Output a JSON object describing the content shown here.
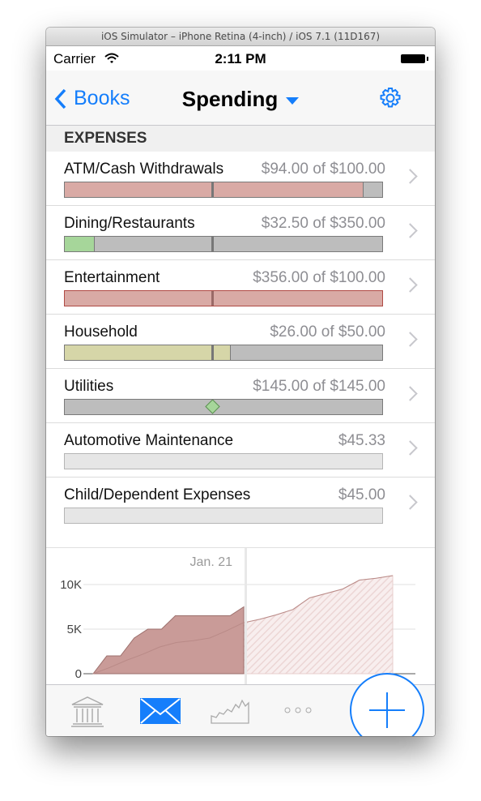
{
  "window": {
    "title": "iOS Simulator – iPhone Retina (4-inch) / iOS 7.1 (11D167)"
  },
  "status_bar": {
    "carrier": "Carrier",
    "time": "2:11 PM"
  },
  "nav": {
    "back_label": "Books",
    "title": "Spending"
  },
  "section": {
    "title": "EXPENSES"
  },
  "expenses": [
    {
      "name": "ATM/Cash Withdrawals",
      "amount": "$94.00 of $100.00",
      "progress": 0.94,
      "color": "#d9aaa5"
    },
    {
      "name": "Dining/Restaurants",
      "amount": "$32.50 of $350.00",
      "progress": 0.093,
      "color": "#a6d69a"
    },
    {
      "name": "Entertainment",
      "amount": "$356.00 of $100.00",
      "progress": 1.0,
      "color": "#d9aaa5"
    },
    {
      "name": "Household",
      "amount": "$26.00 of $50.00",
      "progress": 0.52,
      "color": "#d6d6a8"
    },
    {
      "name": "Utilities",
      "amount": "$145.00 of $145.00",
      "progress": 1.0,
      "color": "#bdbdbd"
    },
    {
      "name": "Automotive Maintenance",
      "amount": "$45.33",
      "progress": 0
    },
    {
      "name": "Child/Dependent Expenses",
      "amount": "$45.00",
      "progress": 0
    }
  ],
  "chart_data": {
    "type": "area",
    "marker_label": "Jan. 21",
    "y_ticks": [
      "10K",
      "5K",
      "0"
    ],
    "ylim": [
      0,
      11000
    ],
    "series": [
      {
        "values": [
          0,
          2000,
          2000,
          4000,
          5000,
          5000,
          6500,
          6500,
          6500,
          6500,
          6500,
          7500
        ],
        "color": "#c99b98"
      },
      {
        "values": [
          0,
          700,
          1500,
          2200,
          3000,
          3500,
          3700,
          4000,
          4800,
          5700,
          6100,
          6600,
          7200,
          8500,
          9000,
          9500,
          10500,
          10700,
          11000
        ],
        "color": "#e8cfcd"
      }
    ]
  },
  "tabs": [
    {
      "icon": "bank-icon"
    },
    {
      "icon": "envelope-icon"
    },
    {
      "icon": "chart-icon"
    },
    {
      "icon": "more-icon"
    }
  ],
  "colors": {
    "accent": "#157efb",
    "over_budget": "#d9aaa5",
    "under_budget": "#a6d69a"
  }
}
